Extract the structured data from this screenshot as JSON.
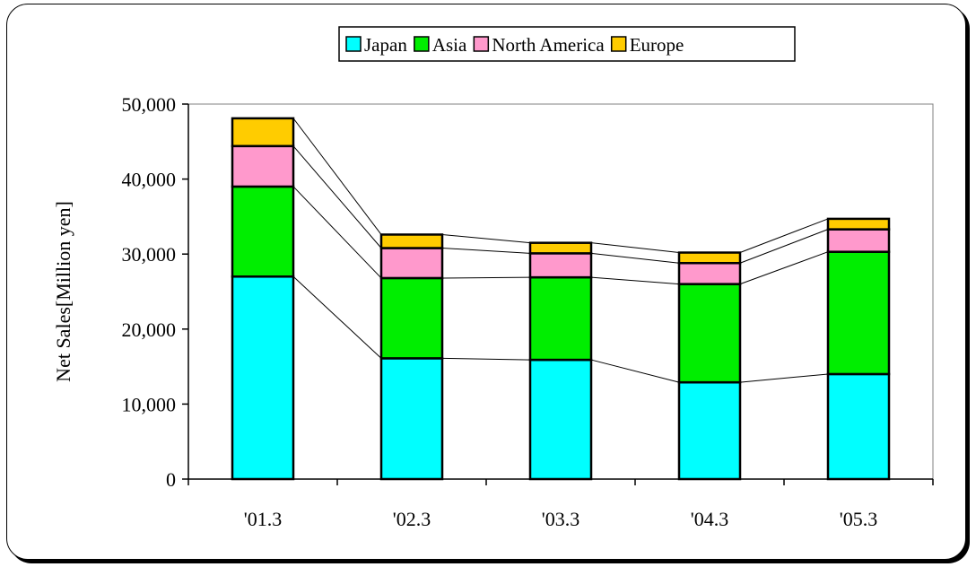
{
  "chart_data": {
    "type": "bar",
    "stacked": true,
    "categories": [
      "'01.3",
      "'02.3",
      "'03.3",
      "'04.3",
      "'05.3"
    ],
    "series": [
      {
        "name": "Japan",
        "color": "#00ffff",
        "values": [
          27000,
          16100,
          15900,
          12900,
          14000
        ]
      },
      {
        "name": "Asia",
        "color": "#00ee00",
        "values": [
          12000,
          10700,
          11000,
          13100,
          16300
        ]
      },
      {
        "name": "North America",
        "color": "#ff99cc",
        "values": [
          5400,
          4000,
          3200,
          2800,
          3000
        ]
      },
      {
        "name": "Europe",
        "color": "#ffcc00",
        "values": [
          3700,
          1800,
          1400,
          1400,
          1400
        ]
      }
    ],
    "ylabel": "Net Sales[Million yen]",
    "ylim": [
      0,
      50000
    ],
    "yticks": [
      "0",
      "10,000",
      "20,000",
      "30,000",
      "40,000",
      "50,000"
    ],
    "grid": false,
    "legend_position": "top",
    "series_connectors": true
  }
}
